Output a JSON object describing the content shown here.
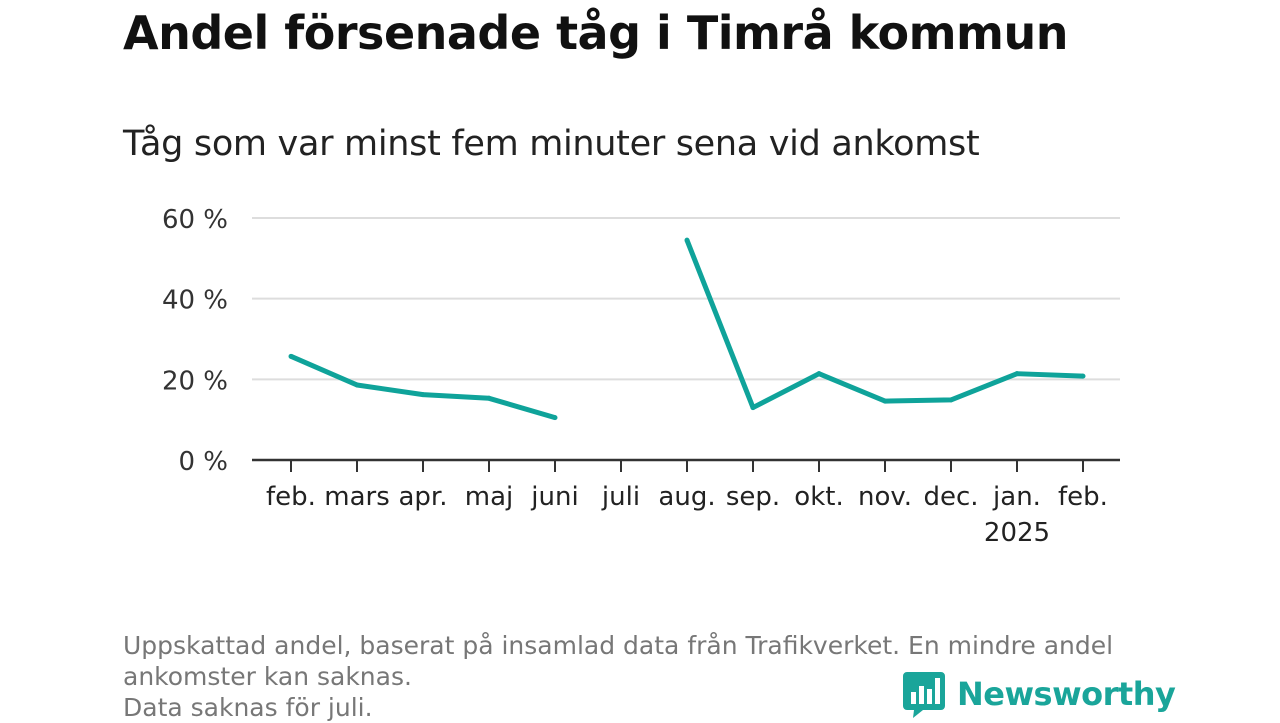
{
  "title": "Andel försenade tåg i Timrå kommun",
  "subtitle": "Tåg som var minst fem minuter sena vid ankomst",
  "note_lines": [
    "Uppskattad andel, baserat på insamlad data från Trafikverket. En mindre andel ankomster kan saknas.",
    "Data saknas för juli."
  ],
  "brand": {
    "name": "Newsworthy",
    "color": "#1aa59a",
    "icon": "newsworthy-logo-icon"
  },
  "chart_data": {
    "type": "line",
    "title": "Andel försenade tåg i Timrå kommun",
    "subtitle": "Tåg som var minst fem minuter sena vid ankomst",
    "categories": [
      "feb.",
      "mars",
      "apr.",
      "maj",
      "juni",
      "juli",
      "aug.",
      "sep.",
      "okt.",
      "nov.",
      "dec.",
      "jan.",
      "feb."
    ],
    "year_label": {
      "category_index": 11,
      "text": "2025"
    },
    "series": [
      {
        "color": "#0fa39a",
        "values": [
          25.7,
          18.6,
          16.2,
          15.3,
          10.5,
          null,
          54.5,
          13.0,
          21.4,
          14.6,
          14.9,
          21.4,
          20.8
        ]
      }
    ],
    "ylim": [
      0,
      60
    ],
    "yticks": [
      0,
      20,
      40,
      60
    ],
    "ytick_labels": [
      "0 %",
      "20 %",
      "40 %",
      "60 %"
    ],
    "grid": true,
    "xlabel": "",
    "ylabel": ""
  }
}
